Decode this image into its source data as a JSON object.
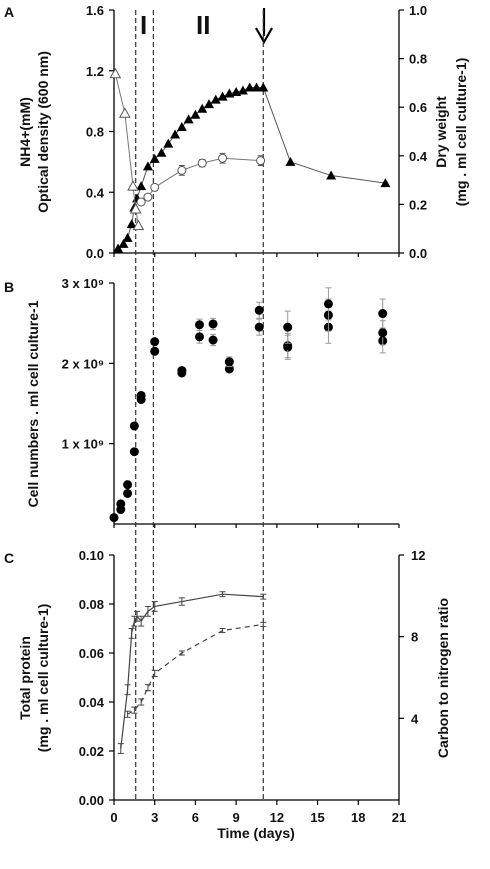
{
  "chart_data": [
    {
      "panel": "A",
      "type": "line",
      "x_range": [
        0,
        21
      ],
      "ylim_left": [
        0,
        1.6
      ],
      "ylim_right": [
        0,
        1.0
      ],
      "yticks_left": [
        "0.0",
        "0.4",
        "0.8",
        "1.2",
        "1.6"
      ],
      "yticks_right": [
        "0.0",
        "0.2",
        "0.4",
        "0.6",
        "0.8",
        "1.0"
      ],
      "ylabel_left": [
        "NH4+(mM)",
        "Optical density (600 nm)"
      ],
      "ylabel_right": [
        "Dry weight",
        "(mg . ml cell culture-1)"
      ],
      "phase_labels": [
        "I",
        "II"
      ],
      "series": [
        {
          "marker": "filled-triangle",
          "axis": "left",
          "x": [
            0.3,
            0.7,
            1.0,
            1.3,
            1.5,
            1.7,
            2.0,
            2.5,
            3.0,
            3.5,
            4.0,
            4.5,
            5.0,
            5.5,
            6.0,
            6.5,
            7.0,
            7.5,
            8.0,
            8.5,
            9.0,
            9.5,
            10.0,
            10.5,
            11.0,
            13.0,
            16.0,
            20.0
          ],
          "values": [
            0.03,
            0.06,
            0.1,
            0.19,
            0.3,
            0.36,
            0.44,
            0.57,
            0.62,
            0.66,
            0.72,
            0.78,
            0.83,
            0.88,
            0.91,
            0.95,
            0.98,
            1.01,
            1.03,
            1.05,
            1.06,
            1.07,
            1.09,
            1.09,
            1.09,
            0.6,
            0.51,
            0.46
          ]
        },
        {
          "marker": "open-triangle",
          "axis": "left",
          "x": [
            0.1,
            0.8,
            1.4,
            1.6,
            1.8
          ],
          "values": [
            1.18,
            0.92,
            0.44,
            0.29,
            0.18
          ]
        },
        {
          "marker": "open-circle",
          "axis": "right",
          "x": [
            2.0,
            2.5,
            3.0,
            5.0,
            6.5,
            8.0,
            10.8
          ],
          "values": [
            0.21,
            0.23,
            0.27,
            0.34,
            0.37,
            0.39,
            0.38
          ],
          "errors": [
            0.01,
            0.01,
            0.012,
            0.02,
            0.015,
            0.02,
            0.02
          ]
        }
      ]
    },
    {
      "panel": "B",
      "type": "scatter",
      "x_range": [
        0,
        21
      ],
      "ylim": [
        0,
        3000000000.0
      ],
      "yticks": [
        "1 x 10⁹",
        "2 x 10⁹",
        "3 x 10⁹"
      ],
      "ylabel": "Cell numbers . ml cell culture-1",
      "points": [
        {
          "x": 0,
          "y": 0.08
        },
        {
          "x": 0.5,
          "y": 0.18
        },
        {
          "x": 0.5,
          "y": 0.25
        },
        {
          "x": 1.0,
          "y": 0.38
        },
        {
          "x": 1.0,
          "y": 0.49
        },
        {
          "x": 1.5,
          "y": 0.9
        },
        {
          "x": 1.5,
          "y": 1.22
        },
        {
          "x": 2.0,
          "y": 1.55
        },
        {
          "x": 2.0,
          "y": 1.6
        },
        {
          "x": 3.0,
          "y": 2.15
        },
        {
          "x": 3.0,
          "y": 2.27
        },
        {
          "x": 5.0,
          "y": 1.88
        },
        {
          "x": 5.0,
          "y": 1.91
        },
        {
          "x": 6.3,
          "y": 2.33,
          "err": 0.08
        },
        {
          "x": 6.3,
          "y": 2.48,
          "err": 0.07
        },
        {
          "x": 7.3,
          "y": 2.29,
          "err": 0.07
        },
        {
          "x": 7.3,
          "y": 2.49,
          "err": 0.07
        },
        {
          "x": 8.5,
          "y": 1.93
        },
        {
          "x": 8.5,
          "y": 2.02,
          "err": 0.06
        },
        {
          "x": 10.7,
          "y": 2.45,
          "err": 0.1
        },
        {
          "x": 10.7,
          "y": 2.66,
          "err": 0.1
        },
        {
          "x": 12.8,
          "y": 2.2,
          "err": 0.15
        },
        {
          "x": 12.8,
          "y": 2.22,
          "err": 0.15
        },
        {
          "x": 12.8,
          "y": 2.45,
          "err": 0.2
        },
        {
          "x": 15.8,
          "y": 2.45,
          "err": 0.2
        },
        {
          "x": 15.8,
          "y": 2.6,
          "err": 0.2
        },
        {
          "x": 15.8,
          "y": 2.74,
          "err": 0.2
        },
        {
          "x": 19.8,
          "y": 2.28,
          "err": 0.15
        },
        {
          "x": 19.8,
          "y": 2.38,
          "err": 0.15
        },
        {
          "x": 19.8,
          "y": 2.62,
          "err": 0.18
        }
      ]
    },
    {
      "panel": "C",
      "type": "line",
      "x_range": [
        0,
        21
      ],
      "xticks": [
        "0",
        "3",
        "6",
        "9",
        "12",
        "15",
        "18",
        "21"
      ],
      "xlabel": "Time (days)",
      "ylim_left": [
        0,
        0.1
      ],
      "ylim_right": [
        0,
        12
      ],
      "yticks_left": [
        "0.00",
        "0.02",
        "0.04",
        "0.06",
        "0.08",
        "0.10"
      ],
      "yticks_right": [
        "4",
        "8",
        "12"
      ],
      "ylabel_left": [
        "Total protein",
        "(mg . ml cell culture-1)"
      ],
      "ylabel_right": "Carbon to nitrogen ratio",
      "series": [
        {
          "style": "solid",
          "axis": "left",
          "x": [
            0.5,
            1.0,
            1.3,
            1.5,
            1.7,
            2.0,
            2.5,
            3.0,
            5.0,
            8.0,
            11.0
          ],
          "values": [
            0.021,
            0.045,
            0.068,
            0.073,
            0.075,
            0.073,
            0.077,
            0.079,
            0.081,
            0.084,
            0.083
          ],
          "errors": [
            0.002,
            0.002,
            0.002,
            0.002,
            0.002,
            0.002,
            0.002,
            0.002,
            0.0015,
            0.001,
            0.001
          ]
        },
        {
          "style": "dashed",
          "axis": "right",
          "x": [
            1.0,
            1.5,
            2.0,
            2.5,
            3.0,
            5.0,
            8.0,
            11.0
          ],
          "values": [
            4.2,
            4.4,
            4.8,
            5.5,
            6.2,
            7.2,
            8.3,
            8.6
          ],
          "errors": [
            0.15,
            0.15,
            0.15,
            0.15,
            0.15,
            0.1,
            0.1,
            0.1
          ]
        }
      ]
    }
  ],
  "marker_days": [
    1.6,
    2.9,
    11.0
  ]
}
